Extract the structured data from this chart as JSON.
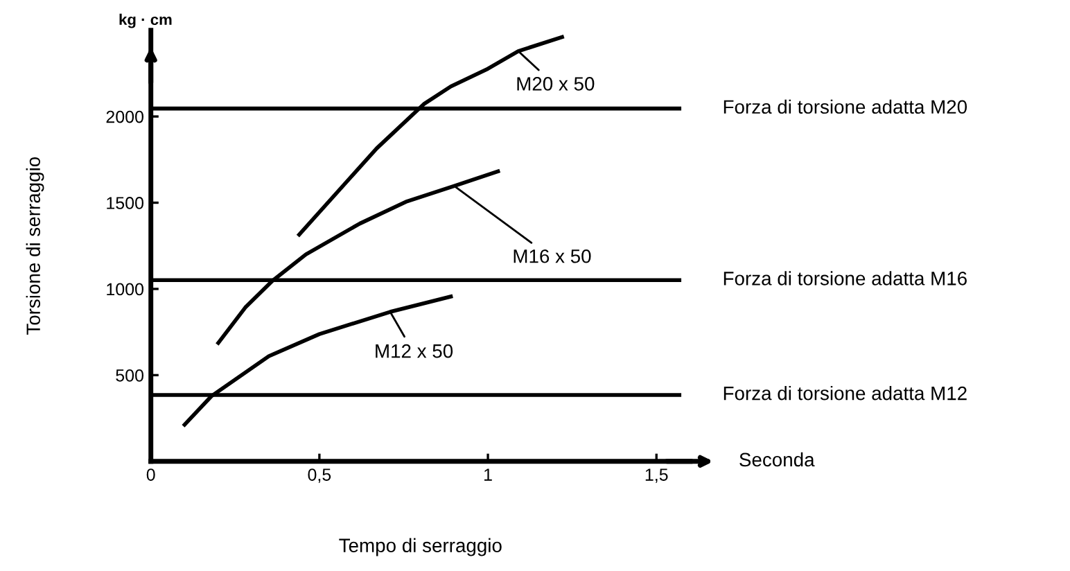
{
  "chart_data": {
    "type": "line",
    "xlabel": "Tempo di serraggio",
    "ylabel": "Torsione di serraggio",
    "xlim": [
      0,
      1.6
    ],
    "ylim": [
      0,
      2500
    ],
    "xticks": [
      0,
      {
        "value": 0.5,
        "label": "0,5"
      },
      1,
      {
        "value": 1.5,
        "label": "1,5"
      }
    ],
    "yticks": [
      500,
      1000,
      1500,
      2000
    ],
    "grid": false,
    "legend": false,
    "marker": "none",
    "line_style": "solid",
    "series": [
      {
        "color": "#000000",
        "x": [
          0.44,
          0.67,
          0.81,
          0.89,
          1.0,
          1.09,
          1.22
        ],
        "values": [
          1315,
          1815,
          2072,
          2174,
          2277,
          2379,
          2461
        ]
      },
      {
        "color": "#000000",
        "x": [
          0.2,
          0.28,
          0.36,
          0.46,
          0.62,
          0.76,
          0.9,
          1.03
        ],
        "values": [
          687,
          892,
          1046,
          1200,
          1379,
          1508,
          1597,
          1682
        ]
      },
      {
        "color": "#000000",
        "x": [
          0.1,
          0.18,
          0.35,
          0.5,
          0.71,
          0.89
        ],
        "values": [
          213,
          379,
          610,
          738,
          867,
          956
        ]
      }
    ],
    "ref_lines": [
      {
        "axis": "y",
        "value": 2046,
        "label": "Forza di torsione adatta M20",
        "color": "#000000"
      },
      {
        "axis": "y",
        "value": 1051,
        "label": "Forza di torsione adatta M16",
        "color": "#000000"
      },
      {
        "axis": "y",
        "value": 385,
        "label": "Forza di torsione adatta M12",
        "color": "#000000"
      }
    ],
    "annotations": [
      "kg · cm",
      "Seconda",
      {
        "text": "M20 x 50",
        "x": 1.09,
        "y": 2379
      },
      {
        "text": "M16 x 50",
        "x": 0.9,
        "y": 1597
      },
      {
        "text": "M12 x 50",
        "x": 0.71,
        "y": 867
      }
    ]
  }
}
